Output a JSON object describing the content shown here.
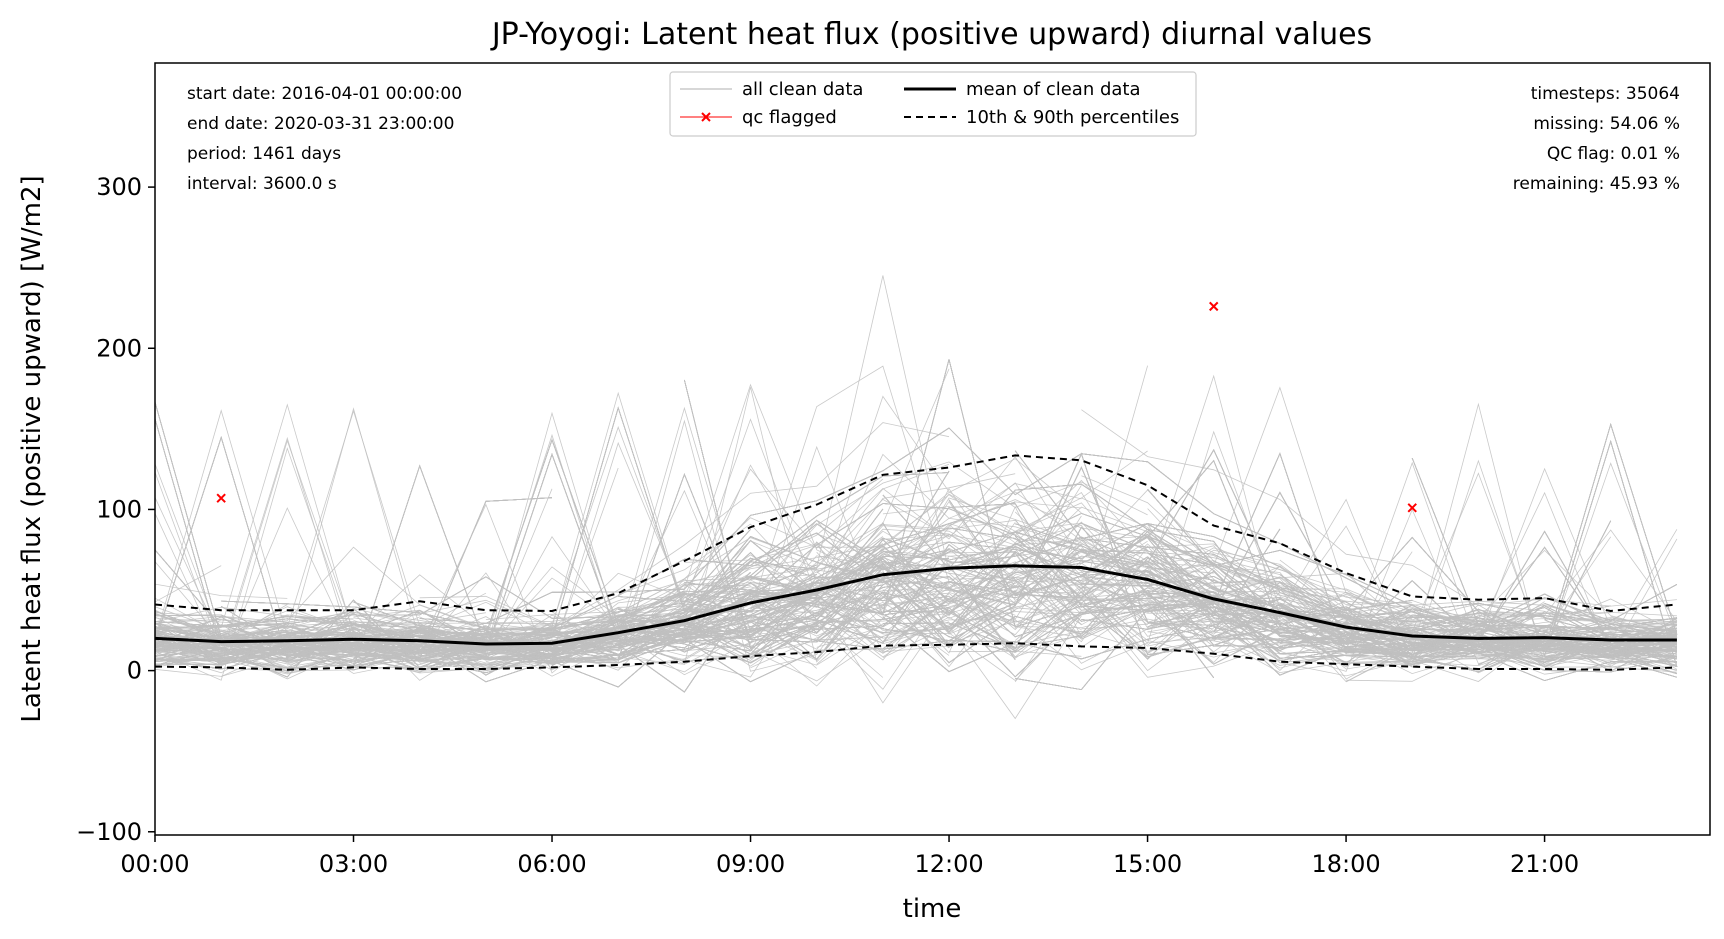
{
  "chart_data": {
    "type": "line",
    "title": "JP-Yoyogi: Latent heat flux (positive upward) diurnal values",
    "xlabel": "time",
    "ylabel": "Latent heat flux (positive upward) [W/m2]",
    "xlim": [
      0,
      23.5
    ],
    "ylim": [
      -102,
      377
    ],
    "x_ticks": [
      {
        "hour": 0,
        "label": "00:00"
      },
      {
        "hour": 3,
        "label": "03:00"
      },
      {
        "hour": 6,
        "label": "06:00"
      },
      {
        "hour": 9,
        "label": "09:00"
      },
      {
        "hour": 12,
        "label": "12:00"
      },
      {
        "hour": 15,
        "label": "15:00"
      },
      {
        "hour": 18,
        "label": "18:00"
      },
      {
        "hour": 21,
        "label": "21:00"
      }
    ],
    "y_ticks": [
      {
        "value": -100,
        "label": "−100"
      },
      {
        "value": 0,
        "label": "0"
      },
      {
        "value": 100,
        "label": "100"
      },
      {
        "value": 200,
        "label": "200"
      },
      {
        "value": 300,
        "label": "300"
      }
    ],
    "hours": [
      0,
      1,
      2,
      3,
      4,
      5,
      6,
      7,
      8,
      9,
      10,
      11,
      12,
      13,
      14,
      15,
      16,
      17,
      18,
      19,
      20,
      21,
      22,
      23
    ],
    "series": [
      {
        "name": "mean of clean data",
        "values": [
          20,
          18,
          18.5,
          19.5,
          18.5,
          16.5,
          17,
          23.5,
          31,
          42,
          50,
          59.5,
          63.5,
          65,
          64,
          56.5,
          44.5,
          36,
          27,
          21.5,
          20,
          20.5,
          19,
          19
        ]
      },
      {
        "name": "10th & 90th percentiles",
        "role": "p90",
        "values": [
          41,
          37.5,
          37.5,
          37.5,
          43,
          37.5,
          37,
          48,
          68,
          89,
          103,
          121.5,
          126,
          133.5,
          130.5,
          115,
          90,
          79,
          60.5,
          46,
          44,
          45,
          37,
          41
        ]
      },
      {
        "name": "10th & 90th percentiles",
        "role": "p10",
        "values": [
          2.5,
          2,
          0.5,
          2,
          1,
          1,
          2,
          3.5,
          5.5,
          9,
          11.5,
          15.5,
          16,
          17,
          15,
          14,
          10.5,
          5.5,
          4,
          2.5,
          1,
          1,
          0.5,
          2
        ]
      }
    ],
    "qc_flagged": [
      {
        "hour": 1,
        "value": 107
      },
      {
        "hour": 16,
        "value": 226
      },
      {
        "hour": 19,
        "value": 101
      }
    ],
    "legend": {
      "placement": "top-center",
      "entries": [
        {
          "label": "all clean data",
          "style": "clean"
        },
        {
          "label": "mean of clean data",
          "style": "mean"
        },
        {
          "label": "qc flagged",
          "style": "flag"
        },
        {
          "label": "10th & 90th percentiles",
          "style": "pct"
        }
      ]
    },
    "info_left": [
      "start date: 2016-04-01 00:00:00",
      "end date: 2020-03-31 23:00:00",
      "period: 1461 days",
      "interval: 3600.0 s"
    ],
    "info_right": [
      "timesteps: 35064",
      "missing: 54.06 %",
      "QC flag: 0.01 %",
      "remaining: 45.93 %"
    ],
    "colors": {
      "clean": "#bfbfbf",
      "mean": "#000000",
      "percentile": "#000000",
      "flag": "#ff0000"
    }
  }
}
